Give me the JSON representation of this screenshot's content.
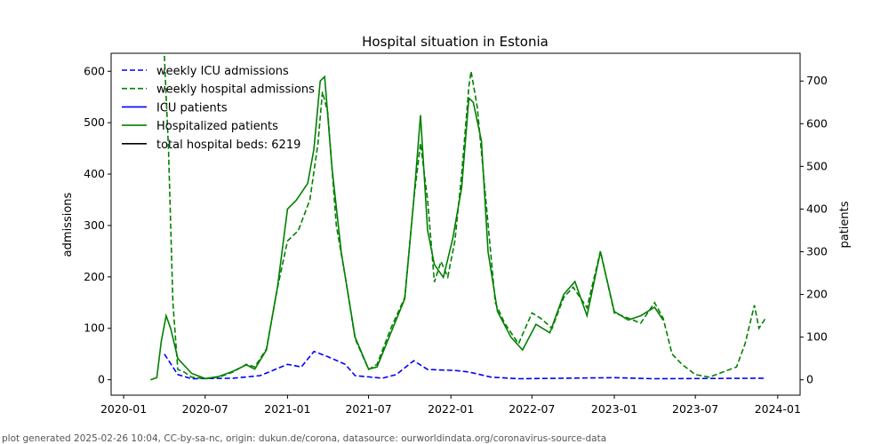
{
  "chart_data": {
    "type": "line",
    "title": "Hospital situation in Estonia",
    "ylabel": "admissions",
    "ylabel_right": "patients",
    "ylim": [
      -30,
      635
    ],
    "ylim_right": [
      -36,
      765
    ],
    "xlim": [
      "2019-12-04",
      "2024-02-20"
    ],
    "yticks": [
      0,
      100,
      200,
      300,
      400,
      500,
      600
    ],
    "yticks_right": [
      0,
      100,
      200,
      300,
      400,
      500,
      600,
      700
    ],
    "xticks": [
      "2020-01",
      "2020-07",
      "2021-01",
      "2021-07",
      "2022-01",
      "2022-07",
      "2023-01",
      "2023-07",
      "2024-01"
    ],
    "legend_position": "top-left",
    "series": [
      {
        "name": "weekly ICU admissions",
        "color": "#0000ff",
        "style": "dashed",
        "axis": "left",
        "points": [
          [
            "2020-04-01",
            50
          ],
          [
            "2020-05-01",
            10
          ],
          [
            "2020-06-01",
            2
          ],
          [
            "2020-09-01",
            3
          ],
          [
            "2020-11-01",
            8
          ],
          [
            "2021-01-01",
            30
          ],
          [
            "2021-02-01",
            25
          ],
          [
            "2021-03-01",
            55
          ],
          [
            "2021-04-01",
            45
          ],
          [
            "2021-05-10",
            30
          ],
          [
            "2021-06-01",
            8
          ],
          [
            "2021-08-01",
            3
          ],
          [
            "2021-09-01",
            10
          ],
          [
            "2021-10-10",
            37
          ],
          [
            "2021-11-10",
            20
          ],
          [
            "2022-01-10",
            18
          ],
          [
            "2022-02-10",
            15
          ],
          [
            "2022-04-01",
            5
          ],
          [
            "2022-06-01",
            2
          ],
          [
            "2023-01-01",
            4
          ],
          [
            "2023-04-01",
            2
          ],
          [
            "2023-12-01",
            3
          ]
        ]
      },
      {
        "name": "weekly hospital admissions",
        "color": "#008000",
        "style": "dashed",
        "axis": "left",
        "points": [
          [
            "2020-04-01",
            630
          ],
          [
            "2020-04-10",
            450
          ],
          [
            "2020-04-20",
            150
          ],
          [
            "2020-05-01",
            20
          ],
          [
            "2020-05-15",
            15
          ],
          [
            "2020-06-01",
            5
          ],
          [
            "2020-07-01",
            2
          ],
          [
            "2020-08-01",
            5
          ],
          [
            "2020-09-01",
            15
          ],
          [
            "2020-10-01",
            30
          ],
          [
            "2020-10-20",
            25
          ],
          [
            "2020-11-15",
            60
          ],
          [
            "2020-12-10",
            180
          ],
          [
            "2021-01-01",
            270
          ],
          [
            "2021-01-25",
            290
          ],
          [
            "2021-02-20",
            350
          ],
          [
            "2021-03-10",
            460
          ],
          [
            "2021-03-20",
            560
          ],
          [
            "2021-04-01",
            520
          ],
          [
            "2021-04-20",
            300
          ],
          [
            "2021-05-10",
            200
          ],
          [
            "2021-06-01",
            80
          ],
          [
            "2021-07-01",
            20
          ],
          [
            "2021-07-20",
            30
          ],
          [
            "2021-08-20",
            100
          ],
          [
            "2021-09-20",
            160
          ],
          [
            "2021-10-10",
            350
          ],
          [
            "2021-10-25",
            460
          ],
          [
            "2021-11-10",
            350
          ],
          [
            "2021-11-25",
            190
          ],
          [
            "2021-12-10",
            230
          ],
          [
            "2021-12-25",
            200
          ],
          [
            "2022-01-10",
            270
          ],
          [
            "2022-01-25",
            400
          ],
          [
            "2022-02-10",
            570
          ],
          [
            "2022-02-15",
            600
          ],
          [
            "2022-03-01",
            530
          ],
          [
            "2022-03-20",
            350
          ],
          [
            "2022-04-10",
            150
          ],
          [
            "2022-05-01",
            110
          ],
          [
            "2022-06-01",
            70
          ],
          [
            "2022-07-01",
            130
          ],
          [
            "2022-07-20",
            120
          ],
          [
            "2022-08-15",
            100
          ],
          [
            "2022-09-10",
            160
          ],
          [
            "2022-10-01",
            180
          ],
          [
            "2022-11-01",
            140
          ],
          [
            "2022-12-01",
            250
          ],
          [
            "2023-01-01",
            130
          ],
          [
            "2023-02-01",
            120
          ],
          [
            "2023-03-01",
            110
          ],
          [
            "2023-04-01",
            150
          ],
          [
            "2023-04-20",
            120
          ],
          [
            "2023-05-10",
            50
          ],
          [
            "2023-06-01",
            30
          ],
          [
            "2023-07-01",
            10
          ],
          [
            "2023-08-01",
            5
          ],
          [
            "2023-09-01",
            15
          ],
          [
            "2023-10-01",
            25
          ],
          [
            "2023-10-20",
            70
          ],
          [
            "2023-11-10",
            145
          ],
          [
            "2023-11-20",
            100
          ],
          [
            "2023-12-05",
            120
          ]
        ]
      },
      {
        "name": "ICU patients",
        "color": "#0000ff",
        "style": "solid",
        "axis": "right",
        "points": []
      },
      {
        "name": "Hospitalized patients",
        "color": "#008000",
        "style": "solid",
        "axis": "right",
        "points": [
          [
            "2020-03-01",
            0
          ],
          [
            "2020-03-15",
            5
          ],
          [
            "2020-03-25",
            90
          ],
          [
            "2020-04-05",
            150
          ],
          [
            "2020-04-15",
            120
          ],
          [
            "2020-05-01",
            50
          ],
          [
            "2020-06-01",
            15
          ],
          [
            "2020-07-01",
            3
          ],
          [
            "2020-08-01",
            8
          ],
          [
            "2020-09-01",
            20
          ],
          [
            "2020-10-01",
            35
          ],
          [
            "2020-10-20",
            25
          ],
          [
            "2020-11-15",
            70
          ],
          [
            "2020-12-10",
            220
          ],
          [
            "2021-01-01",
            400
          ],
          [
            "2021-01-20",
            420
          ],
          [
            "2021-02-15",
            460
          ],
          [
            "2021-03-01",
            540
          ],
          [
            "2021-03-15",
            700
          ],
          [
            "2021-03-25",
            710
          ],
          [
            "2021-04-10",
            500
          ],
          [
            "2021-05-01",
            300
          ],
          [
            "2021-06-01",
            100
          ],
          [
            "2021-07-01",
            25
          ],
          [
            "2021-07-20",
            30
          ],
          [
            "2021-08-20",
            110
          ],
          [
            "2021-09-20",
            190
          ],
          [
            "2021-10-10",
            420
          ],
          [
            "2021-10-25",
            620
          ],
          [
            "2021-11-10",
            350
          ],
          [
            "2021-11-25",
            270
          ],
          [
            "2021-12-15",
            240
          ],
          [
            "2022-01-05",
            330
          ],
          [
            "2022-01-25",
            450
          ],
          [
            "2022-02-10",
            660
          ],
          [
            "2022-02-20",
            650
          ],
          [
            "2022-03-10",
            560
          ],
          [
            "2022-03-25",
            300
          ],
          [
            "2022-04-15",
            160
          ],
          [
            "2022-05-15",
            100
          ],
          [
            "2022-06-10",
            70
          ],
          [
            "2022-07-10",
            130
          ],
          [
            "2022-08-10",
            110
          ],
          [
            "2022-09-10",
            200
          ],
          [
            "2022-10-05",
            230
          ],
          [
            "2022-11-01",
            150
          ],
          [
            "2022-12-01",
            300
          ],
          [
            "2023-01-01",
            160
          ],
          [
            "2023-02-01",
            140
          ],
          [
            "2023-03-01",
            150
          ],
          [
            "2023-04-01",
            170
          ],
          [
            "2023-04-20",
            140
          ]
        ]
      },
      {
        "name": "total hospital beds: 6219",
        "color": "#000000",
        "style": "solid",
        "axis": "right",
        "points": []
      }
    ]
  },
  "footer": "plot generated 2025-02-26 10:04, CC-by-sa-nc, origin: dukun.de/corona, datasource: ourworldindata.org/coronavirus-source-data"
}
